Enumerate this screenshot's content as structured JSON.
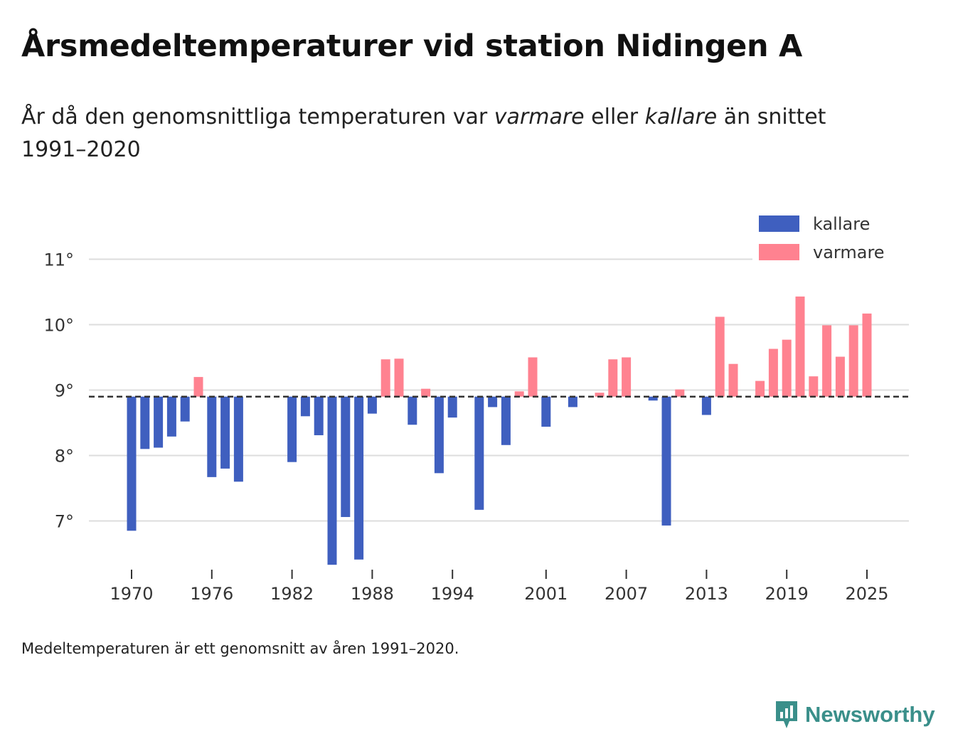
{
  "title": "Årsmedeltemperaturer vid station Nidingen A",
  "subtitle": {
    "part1": "År då den genomsnittliga temperaturen var ",
    "em1": "varmare",
    "part2": " eller ",
    "em2": "kallare",
    "part3": " än snittet 1991–2020"
  },
  "footnote": "Medeltemperaturen är ett genomsnitt av åren 1991–2020.",
  "brand": "Newsworthy",
  "colors": {
    "kallare": "#3f5fbf",
    "varmare": "#ff8290",
    "grid": "#dddddd",
    "baseline": "#333333",
    "brand": "#3a8f8a"
  },
  "chart_data": {
    "type": "bar",
    "title": "Årsmedeltemperaturer vid station Nidingen A",
    "xlabel": "",
    "ylabel": "",
    "baseline": 8.9,
    "ylim": [
      6.2,
      11.4
    ],
    "xlim": [
      1966.5,
      2028
    ],
    "y_ticks": [
      7,
      8,
      9,
      10,
      11
    ],
    "y_tick_labels": [
      "7°",
      "8°",
      "9°",
      "10°",
      "11°"
    ],
    "x_ticks": [
      1970,
      1976,
      1982,
      1988,
      1994,
      2001,
      2007,
      2013,
      2019,
      2025
    ],
    "x_tick_labels": [
      "1970",
      "1976",
      "1982",
      "1988",
      "1994",
      "2001",
      "2007",
      "2013",
      "2019",
      "2025"
    ],
    "legend": [
      {
        "key": "kallare",
        "label": "kallare"
      },
      {
        "key": "varmare",
        "label": "varmare"
      }
    ],
    "legend_position": "top-right",
    "grid": true,
    "years": [
      1970,
      1971,
      1972,
      1973,
      1974,
      1975,
      1976,
      1977,
      1978,
      1982,
      1983,
      1984,
      1985,
      1986,
      1987,
      1988,
      1989,
      1990,
      1991,
      1992,
      1993,
      1994,
      1996,
      1997,
      1998,
      1999,
      2000,
      2001,
      2003,
      2005,
      2006,
      2007,
      2009,
      2010,
      2011,
      2013,
      2014,
      2015,
      2017,
      2018,
      2019,
      2020,
      2021,
      2022,
      2023,
      2024,
      2025
    ],
    "values": [
      6.85,
      8.1,
      8.12,
      8.29,
      8.52,
      9.2,
      7.67,
      7.8,
      7.6,
      7.9,
      8.6,
      8.31,
      6.33,
      7.06,
      6.41,
      8.64,
      9.47,
      9.48,
      8.47,
      9.02,
      7.73,
      8.58,
      7.17,
      8.74,
      8.16,
      8.98,
      9.5,
      8.44,
      8.74,
      8.96,
      9.47,
      9.5,
      8.84,
      6.93,
      9.01,
      8.62,
      10.12,
      9.4,
      9.14,
      9.63,
      9.77,
      10.43,
      9.21,
      9.99,
      9.51,
      9.99,
      10.17
    ]
  }
}
